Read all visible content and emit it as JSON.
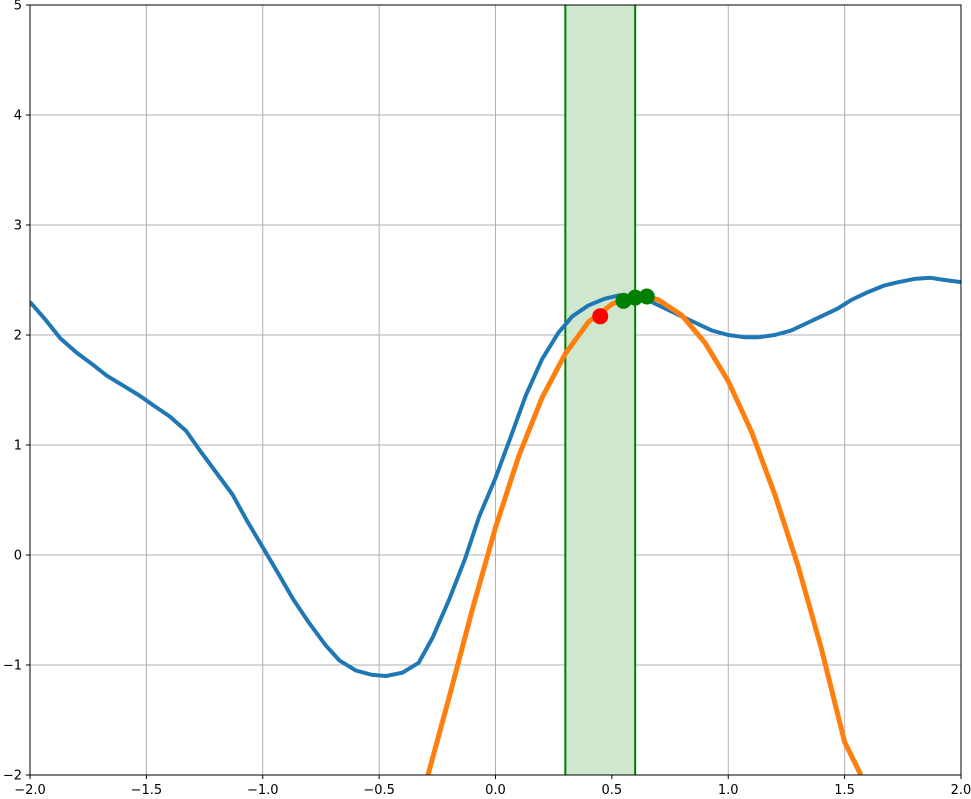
{
  "chart_data": {
    "type": "line",
    "title": "",
    "xlabel": "",
    "ylabel": "",
    "xlim": [
      -2,
      2
    ],
    "ylim": [
      -2,
      5
    ],
    "grid": true,
    "x_ticks": [
      -2.0,
      -1.5,
      -1.0,
      -0.5,
      0.0,
      0.5,
      1.0,
      1.5,
      2.0
    ],
    "x_tick_labels": [
      "−2.0",
      "−1.5",
      "−1.0",
      "−0.5",
      "0.0",
      "0.5",
      "1.0",
      "1.5",
      "2.0"
    ],
    "y_ticks": [
      -2,
      -1,
      0,
      1,
      2,
      3,
      4,
      5
    ],
    "y_tick_labels": [
      "−2",
      "−1",
      "0",
      "1",
      "2",
      "3",
      "4",
      "5"
    ],
    "shaded_region": {
      "x_start": 0.3,
      "x_end": 0.6,
      "fill_color": "#cfe6cf",
      "edge_color": "#008000"
    },
    "series": [
      {
        "kind": "line",
        "color": "#1f77b4",
        "x": [
          -2.0,
          -1.93,
          -1.87,
          -1.8,
          -1.73,
          -1.67,
          -1.6,
          -1.53,
          -1.47,
          -1.4,
          -1.33,
          -1.27,
          -1.2,
          -1.13,
          -1.07,
          -1.0,
          -0.93,
          -0.87,
          -0.8,
          -0.73,
          -0.67,
          -0.6,
          -0.53,
          -0.47,
          -0.4,
          -0.33,
          -0.27,
          -0.2,
          -0.13,
          -0.07,
          0.0,
          0.07,
          0.13,
          0.2,
          0.27,
          0.33,
          0.4,
          0.47,
          0.53,
          0.6,
          0.67,
          0.73,
          0.8,
          0.87,
          0.93,
          1.0,
          1.07,
          1.13,
          1.2,
          1.27,
          1.33,
          1.4,
          1.47,
          1.53,
          1.6,
          1.67,
          1.73,
          1.8,
          1.87,
          1.93,
          2.0
        ],
        "y": [
          2.3,
          2.13,
          1.97,
          1.84,
          1.73,
          1.63,
          1.54,
          1.45,
          1.36,
          1.26,
          1.13,
          0.95,
          0.75,
          0.55,
          0.32,
          0.07,
          -0.18,
          -0.4,
          -0.62,
          -0.82,
          -0.96,
          -1.05,
          -1.09,
          -1.1,
          -1.07,
          -0.98,
          -0.75,
          -0.41,
          -0.03,
          0.35,
          0.7,
          1.1,
          1.45,
          1.78,
          2.02,
          2.17,
          2.27,
          2.33,
          2.36,
          2.35,
          2.3,
          2.24,
          2.17,
          2.1,
          2.04,
          2.0,
          1.98,
          1.98,
          2.0,
          2.04,
          2.1,
          2.17,
          2.24,
          2.32,
          2.39,
          2.45,
          2.48,
          2.51,
          2.52,
          2.5,
          2.48
        ]
      },
      {
        "kind": "line",
        "color": "#ff7f0e",
        "x": [
          -0.29,
          -0.2,
          -0.1,
          0.0,
          0.1,
          0.2,
          0.3,
          0.4,
          0.5,
          0.55,
          0.6,
          0.65,
          0.7,
          0.8,
          0.9,
          1.0,
          1.1,
          1.2,
          1.3,
          1.4,
          1.5,
          1.57
        ],
        "y": [
          -2.0,
          -1.3,
          -0.5,
          0.25,
          0.9,
          1.43,
          1.83,
          2.12,
          2.28,
          2.33,
          2.35,
          2.35,
          2.32,
          2.18,
          1.93,
          1.58,
          1.12,
          0.55,
          -0.1,
          -0.85,
          -1.7,
          -2.0
        ]
      },
      {
        "kind": "scatter",
        "color": "#ff0000",
        "x": [
          0.45
        ],
        "y": [
          2.17
        ]
      },
      {
        "kind": "scatter",
        "color": "#008000",
        "x": [
          0.55,
          0.6,
          0.65
        ],
        "y": [
          2.31,
          2.34,
          2.35
        ]
      }
    ]
  }
}
